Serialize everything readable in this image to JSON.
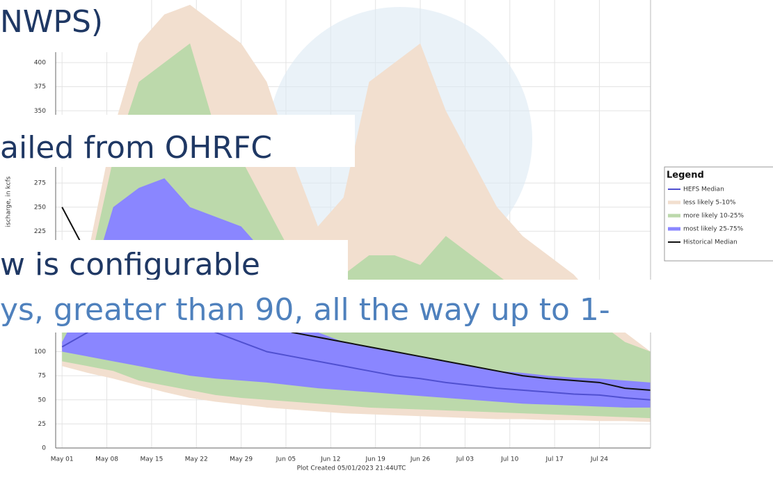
{
  "chart_data": {
    "type": "band",
    "y_label": "ischarge, in kcfs",
    "footer": "Plot Created 05/01/2023 21:44UTC",
    "legend_title": "Legend",
    "legend": "right",
    "grid": true,
    "x": [
      0,
      4,
      8,
      12,
      16,
      20,
      24,
      28,
      32,
      36,
      40,
      44,
      48,
      52,
      56,
      60,
      64,
      68,
      72,
      76,
      80,
      84,
      88,
      92
    ],
    "xlim": [
      -1,
      92
    ],
    "xticks": [
      {
        "value": 0,
        "label": "May 01"
      },
      {
        "value": 7,
        "label": "May 08"
      },
      {
        "value": 14,
        "label": "May 15"
      },
      {
        "value": 21,
        "label": "May 22"
      },
      {
        "value": 28,
        "label": "May 29"
      },
      {
        "value": 35,
        "label": "Jun 05"
      },
      {
        "value": 42,
        "label": "Jun 12"
      },
      {
        "value": 49,
        "label": "Jun 19"
      },
      {
        "value": 56,
        "label": "Jun 26"
      },
      {
        "value": 63,
        "label": "Jul 03"
      },
      {
        "value": 70,
        "label": "Jul 10"
      },
      {
        "value": 77,
        "label": "Jul 17"
      },
      {
        "value": 84,
        "label": "Jul 24"
      }
    ],
    "ylim": [
      0,
      465
    ],
    "yticks": [
      0,
      25,
      50,
      75,
      100,
      225,
      250,
      275,
      350,
      375,
      400
    ],
    "series": [
      {
        "name": "HEFS Median",
        "color": "#5050d0",
        "values": [
          105,
          120,
          140,
          150,
          140,
          130,
          120,
          110,
          100,
          95,
          90,
          85,
          80,
          75,
          72,
          68,
          65,
          62,
          60,
          58,
          56,
          55,
          52,
          50
        ]
      },
      {
        "name": "less likely 5-10%",
        "color": "#f2dfcf",
        "upper": [
          130,
          200,
          330,
          420,
          450,
          460,
          440,
          420,
          380,
          300,
          230,
          260,
          380,
          400,
          420,
          350,
          300,
          250,
          220,
          200,
          180,
          150,
          120,
          100
        ],
        "lower": [
          85,
          78,
          72,
          65,
          58,
          52,
          48,
          45,
          42,
          40,
          38,
          36,
          35,
          34,
          33,
          32,
          31,
          30,
          30,
          29,
          29,
          28,
          28,
          27
        ]
      },
      {
        "name": "more likely 10-25%",
        "color": "#bcd9ab",
        "upper": [
          120,
          180,
          300,
          380,
          400,
          420,
          330,
          300,
          250,
          200,
          150,
          180,
          200,
          200,
          190,
          220,
          200,
          180,
          160,
          150,
          140,
          130,
          110,
          100
        ],
        "lower": [
          90,
          85,
          80,
          70,
          65,
          60,
          55,
          52,
          50,
          48,
          46,
          44,
          42,
          41,
          40,
          39,
          38,
          37,
          36,
          35,
          34,
          33,
          32,
          31
        ]
      },
      {
        "name": "most likely 25-75%",
        "color": "#8a86ff",
        "upper": [
          110,
          160,
          250,
          270,
          280,
          250,
          240,
          230,
          200,
          130,
          120,
          110,
          105,
          100,
          95,
          90,
          85,
          80,
          78,
          75,
          73,
          72,
          70,
          68
        ],
        "lower": [
          100,
          95,
          90,
          85,
          80,
          75,
          72,
          70,
          68,
          65,
          62,
          60,
          58,
          56,
          54,
          52,
          50,
          48,
          46,
          45,
          44,
          43,
          42,
          42
        ]
      },
      {
        "name": "Historical Median",
        "color": "#111111",
        "values": [
          250,
          200,
          190,
          180,
          170,
          160,
          150,
          140,
          130,
          120,
          115,
          110,
          105,
          100,
          95,
          90,
          85,
          80,
          75,
          72,
          70,
          68,
          62,
          60
        ]
      }
    ]
  },
  "overlay": {
    "lines": [
      {
        "text": "NWPS)",
        "color": "#1f3864"
      },
      {
        "text": "ailed from OHRFC",
        "color": "#1f3864"
      },
      {
        "text": "w is configurable",
        "color": "#1f3864"
      },
      {
        "text": "ys, greater than 90, all the way up to 1-",
        "color": "#4f81bd"
      }
    ]
  }
}
